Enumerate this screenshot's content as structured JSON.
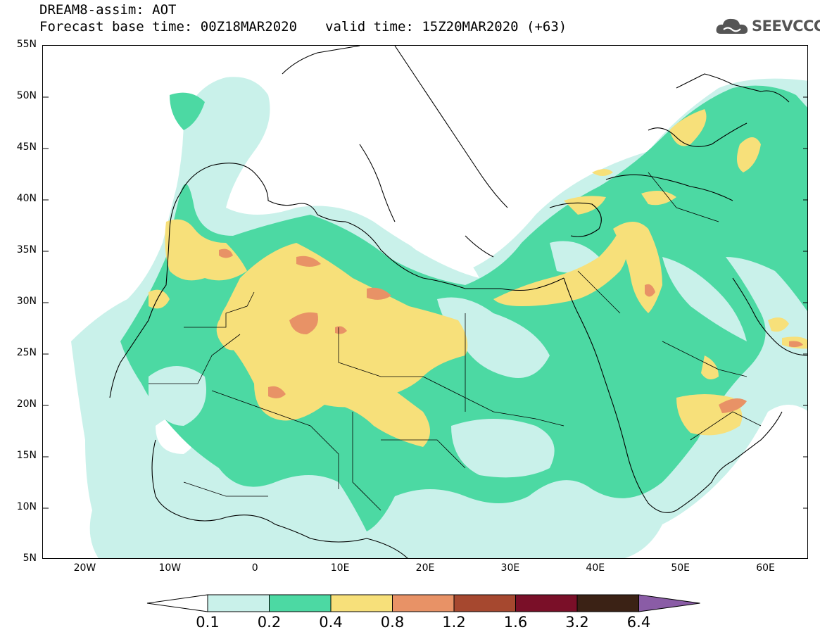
{
  "header": {
    "title": "DREAM8-assim: AOT",
    "base_time": "Forecast base time: 00Z18MAR2020",
    "valid_time": "valid time: 15Z20MAR2020 (+63)"
  },
  "logo": {
    "text": "SEEVCCC",
    "icon": "cloud-icon"
  },
  "map": {
    "lat_labels": [
      "55N",
      "50N",
      "45N",
      "40N",
      "35N",
      "30N",
      "25N",
      "20N",
      "15N",
      "10N",
      "5N"
    ],
    "lon_labels": [
      "20W",
      "10W",
      "0",
      "10E",
      "20E",
      "30E",
      "40E",
      "50E",
      "60E"
    ],
    "lat_range": [
      5,
      55
    ],
    "lon_range": [
      -25,
      65
    ],
    "variable": "AOT"
  },
  "colorbar": {
    "levels": [
      "0.1",
      "0.2",
      "0.4",
      "0.8",
      "1.2",
      "1.6",
      "3.2",
      "6.4"
    ],
    "colors": [
      "#ffffff",
      "#c9f1ea",
      "#4cd9a3",
      "#f7e07a",
      "#e89266",
      "#a6482f",
      "#7a0f28",
      "#3b2215",
      "#8a5ca6"
    ]
  }
}
